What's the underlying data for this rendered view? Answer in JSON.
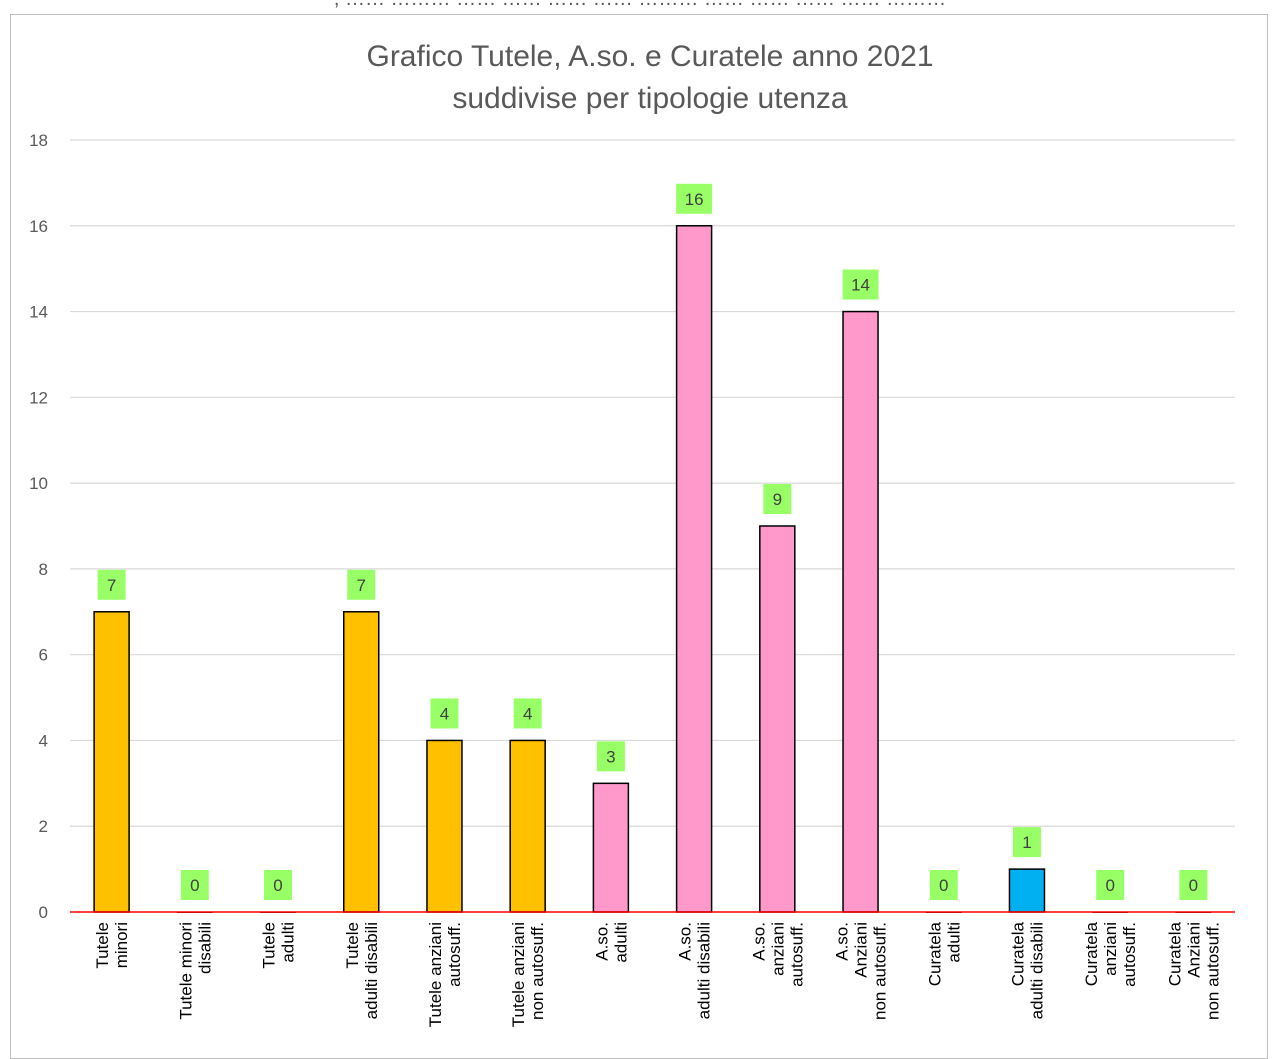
{
  "header_fragment": ", …… ……… …… …… …… …… ……… …… …… …… …… ………",
  "chart_data": {
    "type": "bar",
    "title": [
      "Grafico Tutele, A.so. e Curatele anno 2021",
      "suddivise per tipologie utenza"
    ],
    "categories": [
      [
        "Tutele",
        "minori"
      ],
      [
        "Tutele minori",
        "disabili"
      ],
      [
        "Tutele",
        "adulti"
      ],
      [
        "Tutele",
        "adulti disabili"
      ],
      [
        "Tutele anziani",
        "autosuff."
      ],
      [
        "Tutele anziani",
        "non autosuff."
      ],
      [
        "A.so.",
        "adulti"
      ],
      [
        "A.so.",
        "adulti disabili"
      ],
      [
        "A.so.",
        "anziani",
        "autosuff."
      ],
      [
        "A.so.",
        "Anziani",
        "non autosuff."
      ],
      [
        "Curatela",
        "adulti"
      ],
      [
        "Curatela",
        "adulti disabili"
      ],
      [
        "Curatela",
        "anziani",
        "autosuff."
      ],
      [
        "Curatela",
        "Anziani",
        "non autosuff."
      ]
    ],
    "values": [
      7,
      0,
      0,
      7,
      4,
      4,
      3,
      16,
      9,
      14,
      0,
      1,
      0,
      0
    ],
    "bar_colors": [
      "#FFC000",
      "#FFC000",
      "#FFC000",
      "#FFC000",
      "#FFC000",
      "#FFC000",
      "#FF99CC",
      "#FF99CC",
      "#FF99CC",
      "#FF99CC",
      "#00B0F0",
      "#00B0F0",
      "#00B0F0",
      "#00B0F0"
    ],
    "ylim": [
      0,
      18
    ],
    "yticks": [
      0,
      2,
      4,
      6,
      8,
      10,
      12,
      14,
      16,
      18
    ],
    "grid": true,
    "data_label_background": "#99FF66",
    "baseline_color": "#FF0000",
    "gridline_color": "#d9d9d9"
  }
}
